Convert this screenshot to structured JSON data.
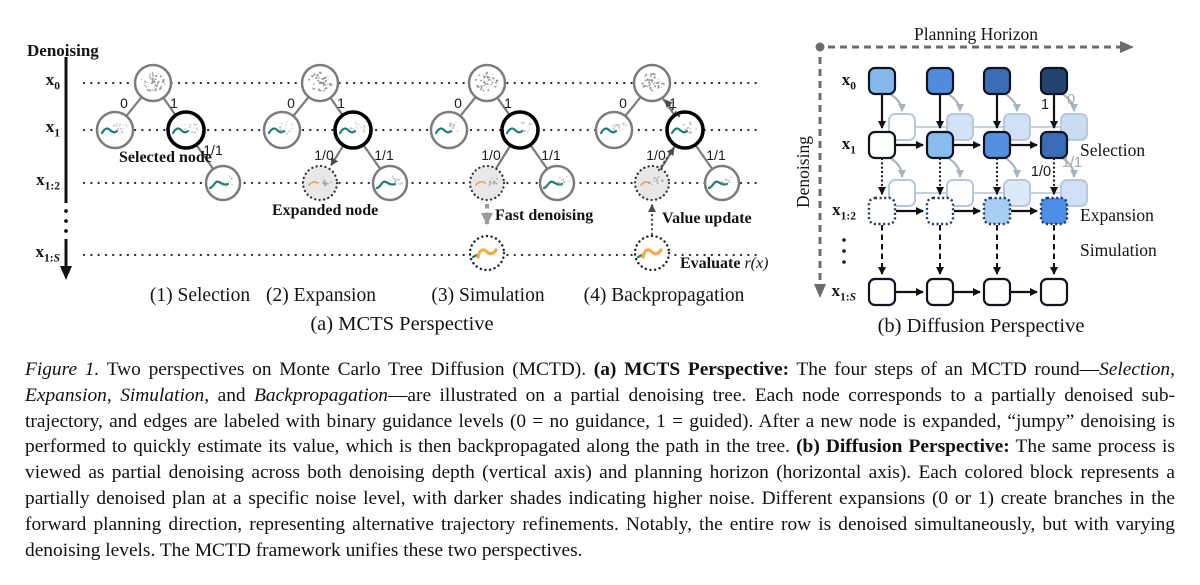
{
  "panel_a": {
    "axis_label": "Denoising",
    "edge_labels": {
      "zero": "0",
      "one": "1",
      "one_zero": "1/0",
      "one_one": "1/1"
    },
    "trees": [
      {
        "caption": "(1) Selection",
        "annotation": "Selected node"
      },
      {
        "caption": "(2) Expansion",
        "annotation": "Expanded node"
      },
      {
        "caption": "(3) Simulation",
        "annotation": "Fast denoising"
      },
      {
        "caption": "(4) Backpropagation",
        "annotation": "Value update",
        "evaluate_label": {
          "prefix": "Evaluate ",
          "math": "r(x)"
        }
      }
    ],
    "caption": "(a) MCTS Perspective"
  },
  "panel_b": {
    "h_axis_label": "Planning Horizon",
    "v_axis_label": "Denoising",
    "right_labels": [
      "Selection",
      "Expansion",
      "Simulation"
    ],
    "edge_labels": {
      "guided": "1",
      "unguided": "0",
      "one_zero": "1/0",
      "one_one": "1/1"
    },
    "caption": "(b) Diffusion Perspective",
    "grid": {
      "x0": [
        "#85B9EB",
        "#4F8CDE",
        "#3A6DB5",
        "#23436E"
      ],
      "x1": [
        "#FFFFFF",
        "#88BBEE",
        "#5590E0",
        "#3A6DB5"
      ],
      "x12": [
        "#FFFFFF",
        "#FFFFFF",
        "#A8CDF2",
        "#4E8EE6"
      ],
      "x1S": [
        "#FFFFFF",
        "#FFFFFF",
        "#FFFFFF",
        "#FFFFFF"
      ],
      "ghost_gap1": [
        "#FFFFFF",
        "#D3E3F6",
        "#D0E1F6",
        "#CBDDF2"
      ],
      "ghost_gap2": [
        "#FFFFFF",
        "#FDFEFF",
        "#DCE9F9",
        "#CFE0F6"
      ]
    }
  },
  "row_labels": [
    {
      "base": "x",
      "sub": "0",
      "sub_it": ""
    },
    {
      "base": "x",
      "sub": "1",
      "sub_it": ""
    },
    {
      "base": "x",
      "sub": "1:2",
      "sub_it": ""
    },
    {
      "base": "x",
      "sub": "1:",
      "sub_it": "S"
    }
  ],
  "colors": {
    "teal": "#1E7D78",
    "orange": "#F2AC45",
    "orange_faint": "#E9A766",
    "node_stroke": "#7C7C7C",
    "selected_stroke": "#000000",
    "ghost_stroke": "#B7C7DE",
    "ghost_line": "#C9D3DF",
    "hook": "#A9B4BF",
    "axis_gray": "#6B6B6B",
    "gray_label": "#A6A6A6",
    "square_stroke": "#0D1420",
    "dotted_square_stroke": "#1C3766"
  },
  "caption": {
    "segments": [
      {
        "t": "Figure 1.",
        "s": "i"
      },
      {
        "t": " Two perspectives on Monte Carlo Tree Diffusion (MCTD). "
      },
      {
        "t": "(a) MCTS Perspective:",
        "s": "b"
      },
      {
        "t": " The four steps of an MCTD round—"
      },
      {
        "t": "Selection",
        "s": "i"
      },
      {
        "t": ", "
      },
      {
        "t": "Expansion",
        "s": "i"
      },
      {
        "t": ", "
      },
      {
        "t": "Simulation",
        "s": "i"
      },
      {
        "t": ", and "
      },
      {
        "t": "Backpropagation",
        "s": "i"
      },
      {
        "t": "—are illustrated on a partial denoising tree. Each node corresponds to a partially denoised sub-trajectory, and edges are labeled with binary guidance levels (0 = no guidance, 1 = guided). After a new node is expanded, “jumpy” denoising is performed to quickly estimate its value, which is then backpropagated along the path in the tree. "
      },
      {
        "t": "(b) Diffusion Perspective:",
        "s": "b"
      },
      {
        "t": " The same process is viewed as partial denoising across both denoising depth (vertical axis) and planning horizon (horizontal axis). Each colored block represents a partially denoised plan at a specific noise level, with darker shades indicating higher noise. Different expansions (0 or 1) create branches in the forward planning direction, representing alternative trajectory refinements. Notably, the entire row is denoised simultaneously, but with varying denoising levels. The MCTD framework unifies these two perspectives."
      }
    ]
  }
}
